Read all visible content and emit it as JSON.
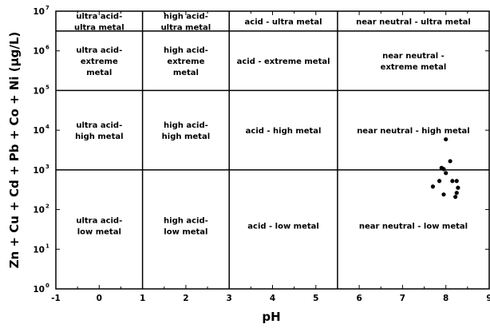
{
  "chart_data": {
    "type": "scatter",
    "title": "",
    "xlabel": "pH",
    "ylabel": "Zn + Cu + Cd + Pb + Co + Ni (μg/L)",
    "xlim": [
      -1,
      9
    ],
    "ylim": [
      0,
      7
    ],
    "y_scale": "log",
    "x_ticks": [
      "-1",
      "0",
      "1",
      "2",
      "3",
      "4",
      "5",
      "6",
      "7",
      "8",
      "9"
    ],
    "y_ticks": [
      {
        "base": "10",
        "exp": "0"
      },
      {
        "base": "10",
        "exp": "1"
      },
      {
        "base": "10",
        "exp": "2"
      },
      {
        "base": "10",
        "exp": "3"
      },
      {
        "base": "10",
        "exp": "4"
      },
      {
        "base": "10",
        "exp": "5"
      },
      {
        "base": "10",
        "exp": "6"
      },
      {
        "base": "10",
        "exp": "7"
      }
    ],
    "zone_boundaries_ph": [
      1,
      3,
      5.5
    ],
    "zone_boundaries_log_metal": [
      3,
      5,
      6.5
    ],
    "zones": [
      {
        "lines": [
          "ultra acid-",
          "ultra metal"
        ],
        "x": 0,
        "y": 6.75
      },
      {
        "lines": [
          "high acid-",
          "ultra metal"
        ],
        "x": 2,
        "y": 6.75
      },
      {
        "lines": [
          "acid - ultra metal"
        ],
        "x": 4.25,
        "y": 6.75
      },
      {
        "lines": [
          "near neutral - ultra metal"
        ],
        "x": 7.25,
        "y": 6.75
      },
      {
        "lines": [
          "ultra acid-",
          "extreme",
          "metal"
        ],
        "x": 0,
        "y": 5.75
      },
      {
        "lines": [
          "high acid-",
          "extreme",
          "metal"
        ],
        "x": 2,
        "y": 5.75
      },
      {
        "lines": [
          "acid - extreme metal"
        ],
        "x": 4.25,
        "y": 5.75
      },
      {
        "lines": [
          "near neutral -",
          "extreme metal"
        ],
        "x": 7.25,
        "y": 5.75
      },
      {
        "lines": [
          "ultra acid-",
          "high metal"
        ],
        "x": 0,
        "y": 4.0
      },
      {
        "lines": [
          "high acid-",
          "high metal"
        ],
        "x": 2,
        "y": 4.0
      },
      {
        "lines": [
          "acid - high metal"
        ],
        "x": 4.25,
        "y": 4.0
      },
      {
        "lines": [
          "near neutral - high metal"
        ],
        "x": 7.25,
        "y": 4.0
      },
      {
        "lines": [
          "ultra acid-",
          "low metal"
        ],
        "x": 0,
        "y": 1.6
      },
      {
        "lines": [
          "high acid-",
          "low metal"
        ],
        "x": 2,
        "y": 1.6
      },
      {
        "lines": [
          "acid - low metal"
        ],
        "x": 4.25,
        "y": 1.6
      },
      {
        "lines": [
          "near neutral - low metal"
        ],
        "x": 7.25,
        "y": 1.6
      }
    ],
    "points": [
      {
        "ph": 8.0,
        "log_metal": 3.77
      },
      {
        "ph": 8.1,
        "log_metal": 3.22
      },
      {
        "ph": 7.9,
        "log_metal": 3.05
      },
      {
        "ph": 7.95,
        "log_metal": 3.02
      },
      {
        "ph": 8.0,
        "log_metal": 2.92
      },
      {
        "ph": 7.85,
        "log_metal": 2.72
      },
      {
        "ph": 8.15,
        "log_metal": 2.72
      },
      {
        "ph": 8.25,
        "log_metal": 2.72
      },
      {
        "ph": 7.7,
        "log_metal": 2.58
      },
      {
        "ph": 8.28,
        "log_metal": 2.55
      },
      {
        "ph": 8.25,
        "log_metal": 2.42
      },
      {
        "ph": 7.95,
        "log_metal": 2.38
      },
      {
        "ph": 8.22,
        "log_metal": 2.32
      }
    ],
    "grid": false,
    "legend": "none"
  }
}
